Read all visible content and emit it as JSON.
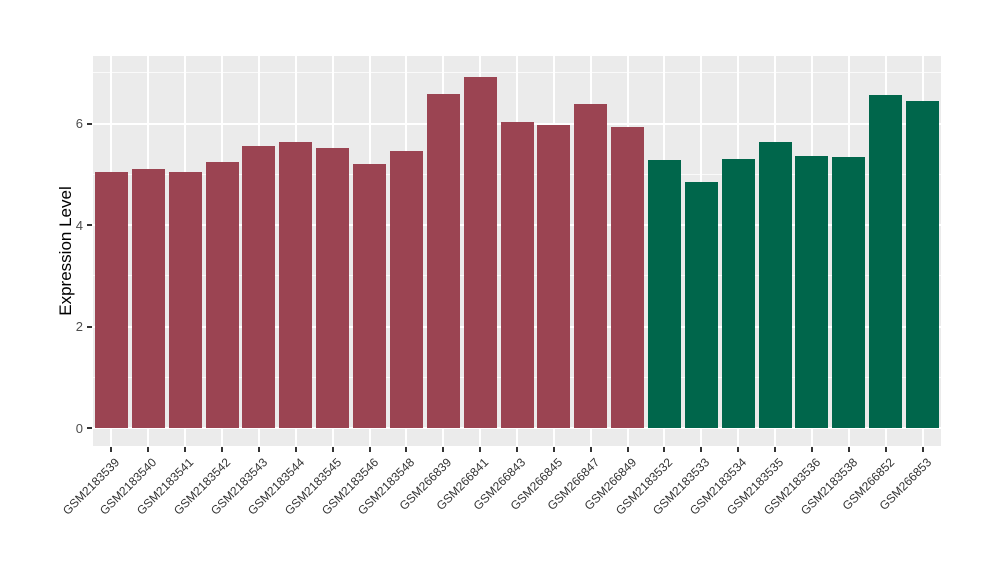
{
  "chart_data": {
    "type": "bar",
    "title": "",
    "xlabel": "",
    "ylabel": "Expression Level",
    "ylim": [
      0,
      7.33
    ],
    "grid": true,
    "legend": "none",
    "yticks": [
      {
        "label": "0",
        "value": 0
      },
      {
        "label": "2",
        "value": 2
      },
      {
        "label": "4",
        "value": 4
      },
      {
        "label": "6",
        "value": 6
      }
    ],
    "yticks_minor": [
      1,
      3,
      5,
      7
    ],
    "colors": {
      "group1": "#9B4452",
      "group2": "#00664B",
      "panel_background": "#EBEBEB",
      "gridline": "#FFFFFF",
      "axis_tick": "#333333",
      "axis_text": "#4D4D4D",
      "axis_title": "#000000"
    },
    "bars": [
      {
        "label": "GSM2183539",
        "value": 5.05,
        "group": "group1"
      },
      {
        "label": "GSM2183540",
        "value": 5.1,
        "group": "group1"
      },
      {
        "label": "GSM2183541",
        "value": 5.04,
        "group": "group1"
      },
      {
        "label": "GSM2183542",
        "value": 5.25,
        "group": "group1"
      },
      {
        "label": "GSM2183543",
        "value": 5.55,
        "group": "group1"
      },
      {
        "label": "GSM2183544",
        "value": 5.63,
        "group": "group1"
      },
      {
        "label": "GSM2183545",
        "value": 5.52,
        "group": "group1"
      },
      {
        "label": "GSM2183546",
        "value": 5.21,
        "group": "group1"
      },
      {
        "label": "GSM2183548",
        "value": 5.46,
        "group": "group1"
      },
      {
        "label": "GSM266839",
        "value": 6.58,
        "group": "group1"
      },
      {
        "label": "GSM266841",
        "value": 6.92,
        "group": "group1"
      },
      {
        "label": "GSM266843",
        "value": 6.02,
        "group": "group1"
      },
      {
        "label": "GSM266845",
        "value": 5.98,
        "group": "group1"
      },
      {
        "label": "GSM266847",
        "value": 6.39,
        "group": "group1"
      },
      {
        "label": "GSM266849",
        "value": 5.94,
        "group": "group1"
      },
      {
        "label": "GSM2183532",
        "value": 5.28,
        "group": "group2"
      },
      {
        "label": "GSM2183533",
        "value": 4.85,
        "group": "group2"
      },
      {
        "label": "GSM2183534",
        "value": 5.31,
        "group": "group2"
      },
      {
        "label": "GSM2183535",
        "value": 5.63,
        "group": "group2"
      },
      {
        "label": "GSM2183536",
        "value": 5.36,
        "group": "group2"
      },
      {
        "label": "GSM2183538",
        "value": 5.34,
        "group": "group2"
      },
      {
        "label": "GSM266852",
        "value": 6.56,
        "group": "group2"
      },
      {
        "label": "GSM266853",
        "value": 6.44,
        "group": "group2"
      }
    ]
  }
}
